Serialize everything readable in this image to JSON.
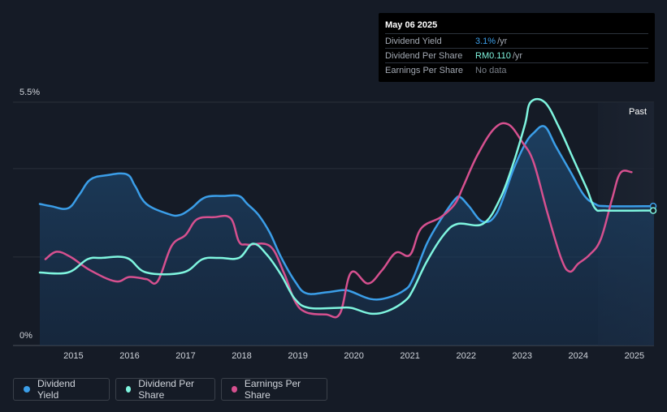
{
  "tooltip": {
    "date": "May 06 2025",
    "rows": [
      {
        "label": "Dividend Yield",
        "value": "3.1%",
        "unit": "/yr",
        "color": "#3b9ee8"
      },
      {
        "label": "Dividend Per Share",
        "value": "RM0.110",
        "unit": "/yr",
        "color": "#7ff5df"
      },
      {
        "label": "Earnings Per Share",
        "value": "No data",
        "unit": "",
        "color": "#7a808a"
      }
    ]
  },
  "past_label": "Past",
  "legend": [
    {
      "label": "Dividend Yield",
      "color": "#3b9ee8"
    },
    {
      "label": "Dividend Per Share",
      "color": "#7ff5df"
    },
    {
      "label": "Earnings Per Share",
      "color": "#d6508f"
    }
  ],
  "chart_data": {
    "type": "line",
    "y_tick_labels": [
      "5.5%",
      "0%"
    ],
    "ylim": [
      0,
      5.5
    ],
    "xlim": [
      2014.4,
      2025.35
    ],
    "x_ticks": [
      2015,
      2016,
      2017,
      2018,
      2019,
      2020,
      2021,
      2022,
      2023,
      2024,
      2025
    ],
    "gridlines": [
      0,
      2,
      4,
      5.5
    ],
    "past_region_start": 2024.35,
    "series": [
      {
        "name": "Dividend Yield",
        "color": "#3b9ee8",
        "filled": true,
        "points": [
          [
            2014.4,
            3.2
          ],
          [
            2014.6,
            3.15
          ],
          [
            2014.9,
            3.1
          ],
          [
            2015.1,
            3.4
          ],
          [
            2015.3,
            3.75
          ],
          [
            2015.6,
            3.85
          ],
          [
            2015.95,
            3.87
          ],
          [
            2016.1,
            3.6
          ],
          [
            2016.3,
            3.2
          ],
          [
            2016.7,
            2.97
          ],
          [
            2016.9,
            2.95
          ],
          [
            2017.1,
            3.1
          ],
          [
            2017.35,
            3.35
          ],
          [
            2017.7,
            3.38
          ],
          [
            2017.95,
            3.38
          ],
          [
            2018.1,
            3.2
          ],
          [
            2018.3,
            2.95
          ],
          [
            2018.5,
            2.55
          ],
          [
            2018.7,
            2.0
          ],
          [
            2018.95,
            1.45
          ],
          [
            2019.15,
            1.18
          ],
          [
            2019.5,
            1.2
          ],
          [
            2019.8,
            1.25
          ],
          [
            2019.95,
            1.22
          ],
          [
            2020.3,
            1.05
          ],
          [
            2020.6,
            1.08
          ],
          [
            2020.9,
            1.25
          ],
          [
            2021.05,
            1.5
          ],
          [
            2021.3,
            2.3
          ],
          [
            2021.55,
            2.85
          ],
          [
            2021.8,
            3.3
          ],
          [
            2021.9,
            3.35
          ],
          [
            2022.05,
            3.15
          ],
          [
            2022.3,
            2.8
          ],
          [
            2022.55,
            3.0
          ],
          [
            2022.85,
            4.0
          ],
          [
            2023.05,
            4.55
          ],
          [
            2023.2,
            4.8
          ],
          [
            2023.4,
            4.95
          ],
          [
            2023.6,
            4.5
          ],
          [
            2023.85,
            3.95
          ],
          [
            2024.1,
            3.4
          ],
          [
            2024.3,
            3.2
          ],
          [
            2024.5,
            3.15
          ],
          [
            2025.35,
            3.15
          ]
        ]
      },
      {
        "name": "Dividend Per Share",
        "color": "#7ff5df",
        "filled": false,
        "points": [
          [
            2014.4,
            1.65
          ],
          [
            2014.9,
            1.65
          ],
          [
            2015.25,
            1.95
          ],
          [
            2015.5,
            1.98
          ],
          [
            2015.95,
            1.98
          ],
          [
            2016.3,
            1.65
          ],
          [
            2016.95,
            1.65
          ],
          [
            2017.3,
            1.95
          ],
          [
            2017.6,
            1.98
          ],
          [
            2017.95,
            1.98
          ],
          [
            2018.2,
            2.3
          ],
          [
            2018.45,
            2.05
          ],
          [
            2018.7,
            1.6
          ],
          [
            2018.95,
            1.05
          ],
          [
            2019.2,
            0.85
          ],
          [
            2019.7,
            0.85
          ],
          [
            2019.95,
            0.85
          ],
          [
            2020.3,
            0.72
          ],
          [
            2020.6,
            0.78
          ],
          [
            2020.9,
            1.0
          ],
          [
            2021.05,
            1.25
          ],
          [
            2021.3,
            1.9
          ],
          [
            2021.6,
            2.5
          ],
          [
            2021.85,
            2.75
          ],
          [
            2022.3,
            2.75
          ],
          [
            2022.6,
            3.3
          ],
          [
            2022.85,
            4.15
          ],
          [
            2023.05,
            5.0
          ],
          [
            2023.15,
            5.5
          ],
          [
            2023.4,
            5.5
          ],
          [
            2023.65,
            4.95
          ],
          [
            2023.9,
            4.25
          ],
          [
            2024.15,
            3.55
          ],
          [
            2024.3,
            3.1
          ],
          [
            2024.5,
            3.05
          ],
          [
            2025.35,
            3.05
          ]
        ]
      },
      {
        "name": "Earnings Per Share",
        "color": "#d6508f",
        "filled": false,
        "points": [
          [
            2014.5,
            1.95
          ],
          [
            2014.7,
            2.12
          ],
          [
            2014.95,
            2.0
          ],
          [
            2015.3,
            1.7
          ],
          [
            2015.75,
            1.45
          ],
          [
            2016.0,
            1.55
          ],
          [
            2016.3,
            1.5
          ],
          [
            2016.5,
            1.45
          ],
          [
            2016.75,
            2.25
          ],
          [
            2017.0,
            2.5
          ],
          [
            2017.2,
            2.85
          ],
          [
            2017.5,
            2.9
          ],
          [
            2017.8,
            2.88
          ],
          [
            2017.95,
            2.35
          ],
          [
            2018.1,
            2.28
          ],
          [
            2018.5,
            2.25
          ],
          [
            2018.75,
            1.65
          ],
          [
            2018.95,
            1.0
          ],
          [
            2019.15,
            0.75
          ],
          [
            2019.5,
            0.7
          ],
          [
            2019.75,
            0.72
          ],
          [
            2019.95,
            1.65
          ],
          [
            2020.25,
            1.4
          ],
          [
            2020.5,
            1.7
          ],
          [
            2020.75,
            2.1
          ],
          [
            2021.0,
            2.05
          ],
          [
            2021.2,
            2.65
          ],
          [
            2021.55,
            2.9
          ],
          [
            2021.8,
            3.2
          ],
          [
            2021.95,
            3.6
          ],
          [
            2022.2,
            4.3
          ],
          [
            2022.5,
            4.9
          ],
          [
            2022.75,
            5.0
          ],
          [
            2023.0,
            4.6
          ],
          [
            2023.2,
            4.15
          ],
          [
            2023.45,
            3.0
          ],
          [
            2023.7,
            1.95
          ],
          [
            2023.85,
            1.67
          ],
          [
            2024.0,
            1.85
          ],
          [
            2024.2,
            2.05
          ],
          [
            2024.4,
            2.4
          ],
          [
            2024.6,
            3.3
          ],
          [
            2024.75,
            3.9
          ],
          [
            2024.95,
            3.92
          ]
        ]
      }
    ]
  }
}
